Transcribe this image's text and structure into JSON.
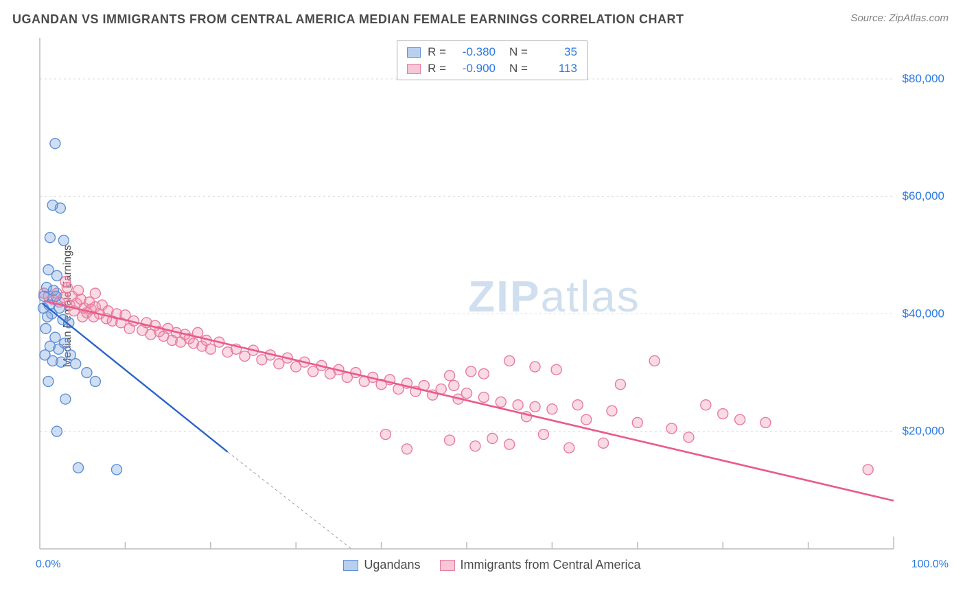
{
  "title": "UGANDAN VS IMMIGRANTS FROM CENTRAL AMERICA MEDIAN FEMALE EARNINGS CORRELATION CHART",
  "source": "Source: ZipAtlas.com",
  "ylabel": "Median Female Earnings",
  "watermark": {
    "bold": "ZIP",
    "light": "atlas"
  },
  "chart": {
    "type": "scatter",
    "xlim": [
      0,
      100
    ],
    "ylim": [
      0,
      87000
    ],
    "x_ticks": {
      "left": "0.0%",
      "right": "100.0%"
    },
    "y_ticks": [
      20000,
      40000,
      60000,
      80000
    ],
    "y_tick_labels": [
      "$20,000",
      "$40,000",
      "$60,000",
      "$80,000"
    ],
    "background_color": "#ffffff",
    "grid_color": "#d8d8d8",
    "axis_color": "#bcbcbc",
    "tick_mark_color": "#bcbcbc",
    "axis_label_color": "#2a7ae2",
    "x_minor_ticks": [
      10,
      20,
      30,
      40,
      50,
      60,
      70,
      80,
      90
    ],
    "marker_radius": 7.5,
    "marker_stroke_width": 1.4,
    "series": {
      "ugandans": {
        "label": "Ugandans",
        "fill": "rgba(120,160,220,0.35)",
        "stroke": "#5c8fd6",
        "swatch_fill": "#b9cfef",
        "swatch_stroke": "#5c8fd6",
        "trend_color": "#2a64c9",
        "trend_width": 2.4,
        "trend_dash_color": "#a0a0a0",
        "trend": {
          "x1": 0.3,
          "y1": 41800,
          "x2": 36.5,
          "y2": 0,
          "x_solid_end": 22.0,
          "y_solid_end": 16500
        },
        "R": "-0.380",
        "N": "35",
        "points": [
          [
            1.8,
            69000
          ],
          [
            1.5,
            58500
          ],
          [
            2.4,
            58000
          ],
          [
            1.2,
            53000
          ],
          [
            2.8,
            52500
          ],
          [
            1.0,
            47500
          ],
          [
            2.0,
            46500
          ],
          [
            0.8,
            44500
          ],
          [
            1.6,
            44000
          ],
          [
            0.5,
            43000
          ],
          [
            1.9,
            43000
          ],
          [
            1.1,
            41500
          ],
          [
            0.4,
            41000
          ],
          [
            2.3,
            41000
          ],
          [
            1.4,
            40000
          ],
          [
            0.9,
            39500
          ],
          [
            2.7,
            39000
          ],
          [
            3.4,
            38500
          ],
          [
            0.7,
            37500
          ],
          [
            1.8,
            36000
          ],
          [
            2.9,
            35000
          ],
          [
            1.2,
            34500
          ],
          [
            2.2,
            34000
          ],
          [
            0.6,
            33000
          ],
          [
            3.6,
            33000
          ],
          [
            1.5,
            32000
          ],
          [
            2.5,
            31800
          ],
          [
            4.2,
            31500
          ],
          [
            5.5,
            30000
          ],
          [
            1.0,
            28500
          ],
          [
            6.5,
            28500
          ],
          [
            3.0,
            25500
          ],
          [
            2.0,
            20000
          ],
          [
            4.5,
            13800
          ],
          [
            9.0,
            13500
          ]
        ]
      },
      "immigrants": {
        "label": "Immigrants from Central America",
        "fill": "rgba(240,150,175,0.35)",
        "stroke": "#e77ba0",
        "swatch_fill": "#f6c8d7",
        "swatch_stroke": "#e77ba0",
        "trend_color": "#ea5a8e",
        "trend_width": 2.6,
        "trend": {
          "x1": 0.5,
          "y1": 42200,
          "x2": 100,
          "y2": 8200
        },
        "R": "-0.900",
        "N": "113",
        "points": [
          [
            0.5,
            43500
          ],
          [
            1.0,
            43000
          ],
          [
            1.5,
            42500
          ],
          [
            2.0,
            43500
          ],
          [
            2.3,
            42000
          ],
          [
            2.8,
            42800
          ],
          [
            3.2,
            44500
          ],
          [
            3.5,
            41500
          ],
          [
            3.8,
            43000
          ],
          [
            4.0,
            40500
          ],
          [
            4.3,
            41800
          ],
          [
            4.8,
            42500
          ],
          [
            5.0,
            39500
          ],
          [
            5.2,
            41000
          ],
          [
            5.5,
            40200
          ],
          [
            5.8,
            42000
          ],
          [
            6.0,
            40800
          ],
          [
            6.3,
            39500
          ],
          [
            6.5,
            41200
          ],
          [
            7.0,
            40000
          ],
          [
            7.3,
            41500
          ],
          [
            7.8,
            39200
          ],
          [
            8.0,
            40500
          ],
          [
            8.5,
            38800
          ],
          [
            9.0,
            40000
          ],
          [
            9.5,
            38500
          ],
          [
            10.0,
            39800
          ],
          [
            10.5,
            37500
          ],
          [
            11.0,
            38800
          ],
          [
            12.0,
            37200
          ],
          [
            12.5,
            38500
          ],
          [
            13.0,
            36500
          ],
          [
            13.5,
            38000
          ],
          [
            14.0,
            37000
          ],
          [
            14.5,
            36200
          ],
          [
            15.0,
            37500
          ],
          [
            15.5,
            35500
          ],
          [
            16.0,
            36800
          ],
          [
            16.5,
            35200
          ],
          [
            17.0,
            36500
          ],
          [
            17.5,
            35800
          ],
          [
            18.0,
            35000
          ],
          [
            18.5,
            36800
          ],
          [
            19.0,
            34500
          ],
          [
            19.5,
            35500
          ],
          [
            20.0,
            34000
          ],
          [
            21.0,
            35200
          ],
          [
            22.0,
            33500
          ],
          [
            23.0,
            34000
          ],
          [
            24.0,
            32800
          ],
          [
            25.0,
            33800
          ],
          [
            26.0,
            32200
          ],
          [
            27.0,
            33000
          ],
          [
            28.0,
            31500
          ],
          [
            29.0,
            32500
          ],
          [
            30.0,
            31000
          ],
          [
            31.0,
            31800
          ],
          [
            32.0,
            30200
          ],
          [
            33.0,
            31200
          ],
          [
            34.0,
            29800
          ],
          [
            35.0,
            30500
          ],
          [
            36.0,
            29200
          ],
          [
            37.0,
            30000
          ],
          [
            38.0,
            28500
          ],
          [
            39.0,
            29200
          ],
          [
            40.0,
            28000
          ],
          [
            41.0,
            28800
          ],
          [
            42.0,
            27200
          ],
          [
            43.0,
            28200
          ],
          [
            44.0,
            26800
          ],
          [
            45.0,
            27800
          ],
          [
            46.0,
            26200
          ],
          [
            47.0,
            27200
          ],
          [
            48.0,
            18500
          ],
          [
            48.5,
            27800
          ],
          [
            49.0,
            25500
          ],
          [
            50.0,
            26500
          ],
          [
            51.0,
            17500
          ],
          [
            52.0,
            25800
          ],
          [
            53.0,
            18800
          ],
          [
            54.0,
            25000
          ],
          [
            55.0,
            17800
          ],
          [
            56.0,
            24500
          ],
          [
            57.0,
            22500
          ],
          [
            58.0,
            24200
          ],
          [
            59.0,
            19500
          ],
          [
            60.0,
            23800
          ],
          [
            62.0,
            17200
          ],
          [
            63.0,
            24500
          ],
          [
            64.0,
            22000
          ],
          [
            66.0,
            18000
          ],
          [
            67.0,
            23500
          ],
          [
            68.0,
            28000
          ],
          [
            70.0,
            21500
          ],
          [
            72.0,
            32000
          ],
          [
            74.0,
            20500
          ],
          [
            76.0,
            19000
          ],
          [
            78.0,
            24500
          ],
          [
            80.0,
            23000
          ],
          [
            82.0,
            22000
          ],
          [
            85.0,
            21500
          ],
          [
            97.0,
            13500
          ],
          [
            3.0,
            45500
          ],
          [
            4.5,
            44000
          ],
          [
            6.5,
            43500
          ],
          [
            48.0,
            29500
          ],
          [
            50.5,
            30200
          ],
          [
            52.0,
            29800
          ],
          [
            40.5,
            19500
          ],
          [
            43.0,
            17000
          ],
          [
            55.0,
            32000
          ],
          [
            58.0,
            31000
          ],
          [
            60.5,
            30500
          ]
        ]
      }
    }
  }
}
